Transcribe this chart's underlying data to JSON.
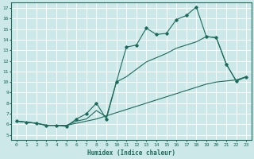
{
  "xlabel": "Humidex (Indice chaleur)",
  "xlim": [
    -0.5,
    23.5
  ],
  "ylim": [
    4.5,
    17.5
  ],
  "yticks": [
    5,
    6,
    7,
    8,
    9,
    10,
    11,
    12,
    13,
    14,
    15,
    16,
    17
  ],
  "xticks": [
    0,
    1,
    2,
    3,
    4,
    5,
    6,
    7,
    8,
    9,
    10,
    11,
    12,
    13,
    14,
    15,
    16,
    17,
    18,
    19,
    20,
    21,
    22,
    23
  ],
  "bg_color": "#cce8e8",
  "grid_color": "#ffffff",
  "line_color": "#1a6b5a",
  "line1_x": [
    0,
    1,
    2,
    3,
    4,
    5,
    6,
    7,
    8,
    9,
    10,
    11,
    12,
    13,
    14,
    15,
    16,
    17,
    18,
    19,
    20,
    21,
    22,
    23
  ],
  "line1_y": [
    6.3,
    6.2,
    6.1,
    5.9,
    5.9,
    5.8,
    6.5,
    7.0,
    8.0,
    6.5,
    10.0,
    13.3,
    13.5,
    15.1,
    14.5,
    14.6,
    15.9,
    16.3,
    17.1,
    14.3,
    14.2,
    11.7,
    10.1,
    10.5
  ],
  "line2_x": [
    0,
    1,
    2,
    3,
    4,
    5,
    6,
    7,
    8,
    9,
    10,
    11,
    12,
    13,
    14,
    15,
    16,
    17,
    18,
    19,
    20,
    21,
    22,
    23
  ],
  "line2_y": [
    6.3,
    6.2,
    6.1,
    5.9,
    5.9,
    5.9,
    6.3,
    6.5,
    7.3,
    6.7,
    10.0,
    10.5,
    11.2,
    11.9,
    12.3,
    12.7,
    13.2,
    13.5,
    13.8,
    14.3,
    14.2,
    11.7,
    10.1,
    10.5
  ],
  "line3_x": [
    0,
    1,
    2,
    3,
    4,
    5,
    6,
    7,
    8,
    9,
    10,
    11,
    12,
    13,
    14,
    15,
    16,
    17,
    18,
    19,
    20,
    21,
    22,
    23
  ],
  "line3_y": [
    6.3,
    6.2,
    6.1,
    5.9,
    5.9,
    5.9,
    6.1,
    6.3,
    6.5,
    6.8,
    7.1,
    7.4,
    7.7,
    8.0,
    8.3,
    8.6,
    8.9,
    9.2,
    9.5,
    9.8,
    10.0,
    10.1,
    10.2,
    10.5
  ]
}
